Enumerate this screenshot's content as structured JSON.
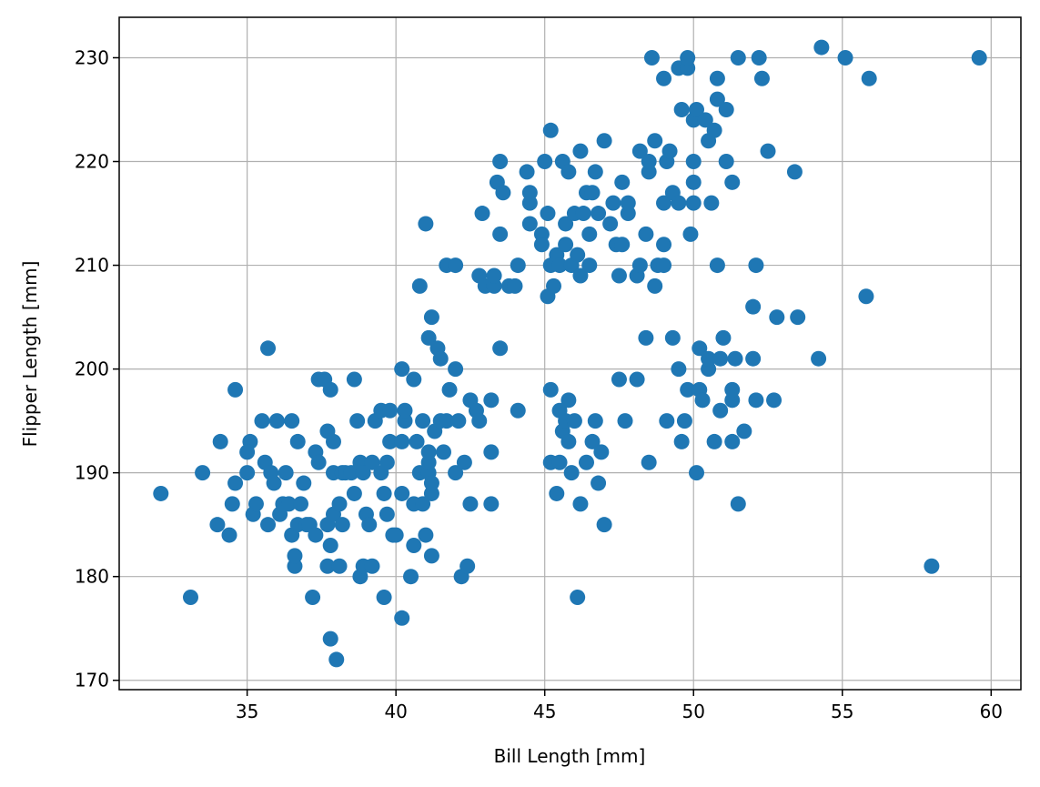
{
  "chart_data": {
    "type": "scatter",
    "title": "",
    "xlabel": "Bill Length [mm]",
    "ylabel": "Flipper Length [mm]",
    "xlim": [
      30.7,
      61.0
    ],
    "ylim": [
      169.1,
      233.9
    ],
    "xticks": [
      35,
      40,
      45,
      50,
      55,
      60
    ],
    "yticks": [
      170,
      180,
      190,
      200,
      210,
      220,
      230
    ],
    "grid": true,
    "marker_color": "#1f77b4",
    "series": [
      {
        "points": [
          [
            32.1,
            188
          ],
          [
            33.1,
            178
          ],
          [
            33.5,
            190
          ],
          [
            34.0,
            185
          ],
          [
            34.1,
            193
          ],
          [
            34.4,
            184
          ],
          [
            34.5,
            187
          ],
          [
            34.6,
            198
          ],
          [
            34.6,
            189
          ],
          [
            35.0,
            190
          ],
          [
            35.1,
            193
          ],
          [
            35.0,
            192
          ],
          [
            35.2,
            186
          ],
          [
            35.3,
            187
          ],
          [
            35.5,
            195
          ],
          [
            35.6,
            191
          ],
          [
            35.7,
            202
          ],
          [
            35.7,
            185
          ],
          [
            35.8,
            190
          ],
          [
            35.9,
            189
          ],
          [
            36.0,
            195
          ],
          [
            36.1,
            186
          ],
          [
            36.2,
            187
          ],
          [
            36.3,
            190
          ],
          [
            36.4,
            187
          ],
          [
            36.5,
            195
          ],
          [
            36.5,
            184
          ],
          [
            36.6,
            181
          ],
          [
            36.6,
            182
          ],
          [
            36.7,
            185
          ],
          [
            36.7,
            193
          ],
          [
            36.8,
            187
          ],
          [
            36.9,
            189
          ],
          [
            37.0,
            185
          ],
          [
            37.1,
            185
          ],
          [
            37.2,
            178
          ],
          [
            37.3,
            184
          ],
          [
            37.3,
            192
          ],
          [
            37.4,
            191
          ],
          [
            37.4,
            199
          ],
          [
            37.6,
            199
          ],
          [
            37.7,
            185
          ],
          [
            37.7,
            194
          ],
          [
            37.7,
            181
          ],
          [
            37.8,
            183
          ],
          [
            37.8,
            198
          ],
          [
            37.8,
            174
          ],
          [
            37.9,
            190
          ],
          [
            37.9,
            193
          ],
          [
            37.9,
            186
          ],
          [
            38.0,
            172
          ],
          [
            38.1,
            181
          ],
          [
            38.1,
            187
          ],
          [
            38.2,
            185
          ],
          [
            38.2,
            190
          ],
          [
            38.3,
            190
          ],
          [
            38.5,
            190
          ],
          [
            38.6,
            188
          ],
          [
            38.6,
            199
          ],
          [
            38.7,
            195
          ],
          [
            38.8,
            180
          ],
          [
            38.8,
            191
          ],
          [
            38.9,
            190
          ],
          [
            38.9,
            181
          ],
          [
            39.0,
            186
          ],
          [
            39.1,
            185
          ],
          [
            39.2,
            181
          ],
          [
            39.2,
            191
          ],
          [
            39.3,
            195
          ],
          [
            39.5,
            196
          ],
          [
            39.5,
            190
          ],
          [
            39.6,
            178
          ],
          [
            39.6,
            188
          ],
          [
            39.7,
            186
          ],
          [
            39.7,
            191
          ],
          [
            39.8,
            196
          ],
          [
            39.8,
            193
          ],
          [
            39.9,
            184
          ],
          [
            40.0,
            184
          ],
          [
            40.2,
            200
          ],
          [
            40.2,
            193
          ],
          [
            40.2,
            176
          ],
          [
            40.2,
            188
          ],
          [
            40.3,
            195
          ],
          [
            40.3,
            196
          ],
          [
            40.5,
            180
          ],
          [
            40.6,
            187
          ],
          [
            40.6,
            199
          ],
          [
            40.6,
            183
          ],
          [
            40.7,
            193
          ],
          [
            40.8,
            190
          ],
          [
            40.8,
            208
          ],
          [
            40.9,
            187
          ],
          [
            40.9,
            195
          ],
          [
            41.0,
            214
          ],
          [
            41.0,
            184
          ],
          [
            41.1,
            203
          ],
          [
            41.1,
            190
          ],
          [
            41.1,
            191
          ],
          [
            41.1,
            192
          ],
          [
            41.2,
            182
          ],
          [
            41.2,
            205
          ],
          [
            41.2,
            188
          ],
          [
            41.2,
            189
          ],
          [
            41.3,
            194
          ],
          [
            41.4,
            202
          ],
          [
            41.5,
            195
          ],
          [
            41.5,
            201
          ],
          [
            41.6,
            192
          ],
          [
            41.7,
            195
          ],
          [
            41.7,
            210
          ],
          [
            41.8,
            198
          ],
          [
            42.0,
            200
          ],
          [
            42.0,
            210
          ],
          [
            42.0,
            190
          ],
          [
            42.1,
            195
          ],
          [
            42.2,
            180
          ],
          [
            42.3,
            191
          ],
          [
            42.4,
            181
          ],
          [
            42.5,
            197
          ],
          [
            42.5,
            187
          ],
          [
            42.7,
            196
          ],
          [
            42.8,
            209
          ],
          [
            42.8,
            195
          ],
          [
            42.9,
            215
          ],
          [
            43.0,
            208
          ],
          [
            43.2,
            197
          ],
          [
            43.2,
            192
          ],
          [
            43.2,
            187
          ],
          [
            43.3,
            208
          ],
          [
            43.3,
            209
          ],
          [
            43.4,
            218
          ],
          [
            43.5,
            213
          ],
          [
            43.5,
            220
          ],
          [
            43.5,
            202
          ],
          [
            43.6,
            217
          ],
          [
            43.8,
            208
          ],
          [
            44.0,
            208
          ],
          [
            44.1,
            196
          ],
          [
            44.1,
            210
          ],
          [
            44.4,
            219
          ],
          [
            44.5,
            216
          ],
          [
            44.5,
            214
          ],
          [
            44.5,
            217
          ],
          [
            44.9,
            213
          ],
          [
            44.9,
            212
          ],
          [
            45.0,
            220
          ],
          [
            45.1,
            215
          ],
          [
            45.2,
            210
          ],
          [
            45.2,
            223
          ],
          [
            45.2,
            191
          ],
          [
            45.2,
            198
          ],
          [
            45.1,
            207
          ],
          [
            45.3,
            208
          ],
          [
            45.4,
            211
          ],
          [
            45.4,
            188
          ],
          [
            45.5,
            210
          ],
          [
            45.5,
            196
          ],
          [
            45.5,
            191
          ],
          [
            45.6,
            194
          ],
          [
            45.6,
            220
          ],
          [
            45.7,
            212
          ],
          [
            45.7,
            214
          ],
          [
            45.7,
            195
          ],
          [
            45.8,
            219
          ],
          [
            45.8,
            193
          ],
          [
            45.8,
            197
          ],
          [
            45.9,
            210
          ],
          [
            45.9,
            190
          ],
          [
            46.0,
            215
          ],
          [
            46.0,
            195
          ],
          [
            46.1,
            178
          ],
          [
            46.1,
            211
          ],
          [
            46.2,
            187
          ],
          [
            46.2,
            209
          ],
          [
            46.2,
            221
          ],
          [
            46.3,
            215
          ],
          [
            46.4,
            217
          ],
          [
            46.4,
            191
          ],
          [
            46.5,
            213
          ],
          [
            46.5,
            210
          ],
          [
            46.6,
            193
          ],
          [
            46.6,
            217
          ],
          [
            46.7,
            195
          ],
          [
            46.7,
            219
          ],
          [
            46.8,
            189
          ],
          [
            46.8,
            215
          ],
          [
            46.9,
            192
          ],
          [
            47.0,
            185
          ],
          [
            47.0,
            222
          ],
          [
            47.2,
            214
          ],
          [
            47.3,
            216
          ],
          [
            47.4,
            212
          ],
          [
            47.5,
            209
          ],
          [
            47.5,
            199
          ],
          [
            47.6,
            218
          ],
          [
            47.6,
            212
          ],
          [
            47.7,
            195
          ],
          [
            47.8,
            215
          ],
          [
            47.8,
            216
          ],
          [
            48.1,
            209
          ],
          [
            48.1,
            199
          ],
          [
            48.2,
            221
          ],
          [
            48.2,
            210
          ],
          [
            48.4,
            203
          ],
          [
            48.4,
            213
          ],
          [
            48.5,
            191
          ],
          [
            48.5,
            219
          ],
          [
            48.5,
            220
          ],
          [
            48.6,
            230
          ],
          [
            48.7,
            208
          ],
          [
            48.7,
            222
          ],
          [
            48.8,
            210
          ],
          [
            49.0,
            228
          ],
          [
            49.0,
            216
          ],
          [
            49.0,
            210
          ],
          [
            49.0,
            212
          ],
          [
            49.1,
            195
          ],
          [
            49.1,
            220
          ],
          [
            49.2,
            221
          ],
          [
            49.3,
            203
          ],
          [
            49.3,
            217
          ],
          [
            49.5,
            229
          ],
          [
            49.5,
            216
          ],
          [
            49.5,
            200
          ],
          [
            49.6,
            225
          ],
          [
            49.6,
            193
          ],
          [
            49.7,
            195
          ],
          [
            49.8,
            198
          ],
          [
            49.8,
            229
          ],
          [
            49.8,
            230
          ],
          [
            49.9,
            213
          ],
          [
            50.0,
            216
          ],
          [
            50.0,
            220
          ],
          [
            50.0,
            224
          ],
          [
            50.0,
            218
          ],
          [
            50.1,
            190
          ],
          [
            50.1,
            225
          ],
          [
            50.2,
            202
          ],
          [
            50.2,
            198
          ],
          [
            50.3,
            197
          ],
          [
            50.4,
            224
          ],
          [
            50.5,
            222
          ],
          [
            50.5,
            200
          ],
          [
            50.5,
            201
          ],
          [
            50.6,
            216
          ],
          [
            50.7,
            193
          ],
          [
            50.7,
            223
          ],
          [
            50.8,
            228
          ],
          [
            50.8,
            226
          ],
          [
            50.8,
            210
          ],
          [
            50.9,
            201
          ],
          [
            50.9,
            196
          ],
          [
            51.0,
            203
          ],
          [
            51.1,
            225
          ],
          [
            51.1,
            220
          ],
          [
            51.3,
            193
          ],
          [
            51.3,
            197
          ],
          [
            51.3,
            198
          ],
          [
            51.3,
            218
          ],
          [
            51.4,
            201
          ],
          [
            51.5,
            230
          ],
          [
            51.5,
            187
          ],
          [
            51.7,
            194
          ],
          [
            52.0,
            206
          ],
          [
            52.0,
            201
          ],
          [
            52.1,
            210
          ],
          [
            52.1,
            197
          ],
          [
            52.2,
            230
          ],
          [
            52.3,
            228
          ],
          [
            52.5,
            221
          ],
          [
            52.7,
            197
          ],
          [
            52.8,
            205
          ],
          [
            53.4,
            219
          ],
          [
            53.5,
            205
          ],
          [
            54.2,
            201
          ],
          [
            54.3,
            231
          ],
          [
            55.1,
            230
          ],
          [
            55.8,
            207
          ],
          [
            55.9,
            228
          ],
          [
            58.0,
            181
          ],
          [
            59.6,
            230
          ]
        ]
      }
    ]
  }
}
